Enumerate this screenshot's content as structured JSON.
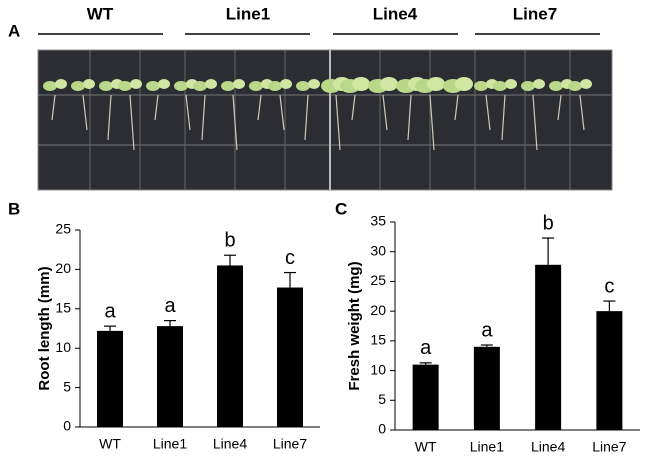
{
  "panel_a": {
    "label": "A",
    "groups": [
      "WT",
      "Line1",
      "Line4",
      "Line7"
    ]
  },
  "chart_data": [
    {
      "type": "bar",
      "panel_label": "B",
      "ylabel": "Root length (mm)",
      "categories": [
        "WT",
        "Line1",
        "Line4",
        "Line7"
      ],
      "values": [
        12.2,
        12.8,
        20.5,
        17.7
      ],
      "errors": [
        0.6,
        0.7,
        1.3,
        1.9
      ],
      "annotations": [
        "a",
        "a",
        "b",
        "c"
      ],
      "color": "#000000",
      "ylim": [
        0,
        25
      ],
      "yticks": [
        0,
        5,
        10,
        15,
        20,
        25
      ]
    },
    {
      "type": "bar",
      "panel_label": "C",
      "ylabel": "Fresh weight (mg)",
      "categories": [
        "WT",
        "Line1",
        "Line4",
        "Line7"
      ],
      "values": [
        11,
        14,
        27.8,
        20
      ],
      "errors": [
        0.3,
        0.3,
        4.5,
        1.7
      ],
      "annotations": [
        "a",
        "a",
        "b",
        "c"
      ],
      "color": "#000000",
      "ylim": [
        0,
        35
      ],
      "yticks": [
        0,
        5,
        10,
        15,
        20,
        25,
        30,
        35
      ]
    }
  ]
}
